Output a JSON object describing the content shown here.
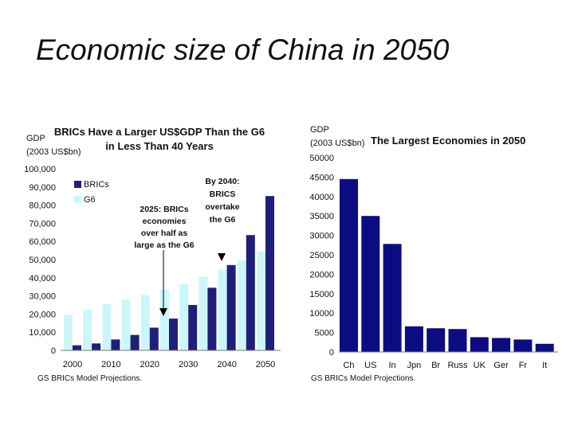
{
  "slide": {
    "title": "Economic size of China in 2050"
  },
  "colors": {
    "brics": "#1f1f7a",
    "g6": "#ccf7fa",
    "bar": "#0c0c82"
  },
  "chart_data": [
    {
      "type": "bar",
      "title_line1": "BRICs Have a Larger US$GDP Than the G6",
      "title_line2": "in Less Than 40 Years",
      "ylabel_line1": "GDP",
      "ylabel_line2": "(2003 US$bn)",
      "ylim": [
        0,
        100000
      ],
      "yticks": [
        "0",
        "10,000",
        "20,000",
        "30,000",
        "40,000",
        "50,000",
        "60,000",
        "70,000",
        "80,000",
        "90,000",
        "100,000"
      ],
      "x": [
        "2000",
        "2005",
        "2010",
        "2015",
        "2020",
        "2025",
        "2030",
        "2035",
        "2040",
        "2045",
        "2050"
      ],
      "xtick_labels": [
        "2000",
        "2010",
        "2020",
        "2030",
        "2040",
        "2050"
      ],
      "series": [
        {
          "name": "BRICs",
          "values": [
            2800,
            3800,
            6000,
            8500,
            12500,
            17500,
            25000,
            34500,
            47000,
            63500,
            85000
          ]
        },
        {
          "name": "G6",
          "values": [
            19500,
            22500,
            25500,
            28000,
            30500,
            33500,
            36500,
            40500,
            44500,
            49500,
            54500
          ]
        }
      ],
      "legend": [
        "BRICs",
        "G6"
      ],
      "annotations": {
        "a2025": [
          "2025: BRICs",
          "economies",
          "over half as",
          "large as the G6"
        ],
        "a2040": [
          "By 2040:",
          "BRICS",
          "overtake",
          "the G6"
        ]
      },
      "source": "GS BRICs Model Projections."
    },
    {
      "type": "bar",
      "title": "The Largest Economies in 2050",
      "ylabel_line1": "GDP",
      "ylabel_line2": "(2003 US$bn)",
      "ylim": [
        0,
        50000
      ],
      "yticks": [
        "0",
        "5000",
        "10000",
        "15000",
        "20000",
        "25000",
        "30000",
        "35000",
        "40000",
        "45000",
        "50000"
      ],
      "categories": [
        "Ch",
        "US",
        "In",
        "Jpn",
        "Br",
        "Russ",
        "UK",
        "Ger",
        "Fr",
        "It"
      ],
      "values": [
        44500,
        35000,
        27800,
        6600,
        6100,
        5900,
        3800,
        3600,
        3200,
        2100
      ],
      "source": "GS BRICs Model Projections."
    }
  ]
}
